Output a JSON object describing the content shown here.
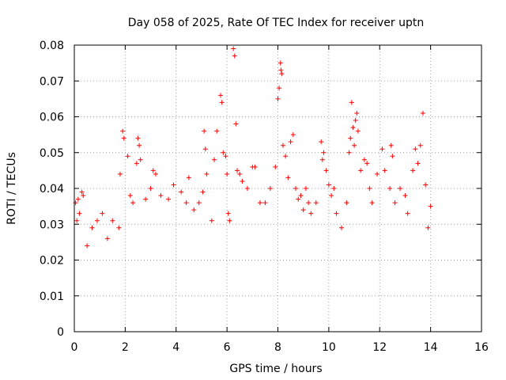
{
  "chart_data": {
    "type": "scatter",
    "title": "Day 058 of 2025, Rate Of TEC Index for receiver uptn",
    "xlabel": "GPS time / hours",
    "ylabel": "ROTI / TECUs",
    "xlim": [
      0,
      16
    ],
    "ylim": [
      0,
      0.08
    ],
    "xticks": [
      0,
      2,
      4,
      6,
      8,
      10,
      12,
      14,
      16
    ],
    "yticks": [
      0,
      0.01,
      0.02,
      0.03,
      0.04,
      0.05,
      0.06,
      0.07,
      0.08
    ],
    "xtick_labels": [
      "0",
      "2",
      "4",
      "6",
      "8",
      "10",
      "12",
      "14",
      "16"
    ],
    "ytick_labels": [
      "0",
      "0.01",
      "0.02",
      "0.03",
      "0.04",
      "0.05",
      "0.06",
      "0.07",
      "0.08"
    ],
    "grid": true,
    "marker": "plus",
    "marker_color": "#ff0000",
    "data_range_x": [
      0,
      14
    ],
    "series": [
      {
        "name": "ROTI",
        "color": "#ff0000",
        "points": [
          [
            0.05,
            0.036
          ],
          [
            0.1,
            0.031
          ],
          [
            0.15,
            0.037
          ],
          [
            0.2,
            0.033
          ],
          [
            0.3,
            0.039
          ],
          [
            0.35,
            0.038
          ],
          [
            0.5,
            0.024
          ],
          [
            0.7,
            0.029
          ],
          [
            0.9,
            0.031
          ],
          [
            1.1,
            0.033
          ],
          [
            1.3,
            0.026
          ],
          [
            1.5,
            0.031
          ],
          [
            1.75,
            0.029
          ],
          [
            1.8,
            0.044
          ],
          [
            1.9,
            0.056
          ],
          [
            1.95,
            0.054
          ],
          [
            2.1,
            0.049
          ],
          [
            2.2,
            0.038
          ],
          [
            2.3,
            0.036
          ],
          [
            2.45,
            0.047
          ],
          [
            2.5,
            0.054
          ],
          [
            2.55,
            0.052
          ],
          [
            2.6,
            0.048
          ],
          [
            2.8,
            0.037
          ],
          [
            3.0,
            0.04
          ],
          [
            3.1,
            0.045
          ],
          [
            3.2,
            0.044
          ],
          [
            3.4,
            0.038
          ],
          [
            3.7,
            0.037
          ],
          [
            3.9,
            0.041
          ],
          [
            4.2,
            0.039
          ],
          [
            4.4,
            0.036
          ],
          [
            4.5,
            0.043
          ],
          [
            4.7,
            0.034
          ],
          [
            4.9,
            0.036
          ],
          [
            5.05,
            0.039
          ],
          [
            5.1,
            0.056
          ],
          [
            5.15,
            0.051
          ],
          [
            5.2,
            0.044
          ],
          [
            5.4,
            0.031
          ],
          [
            5.5,
            0.048
          ],
          [
            5.6,
            0.056
          ],
          [
            5.75,
            0.066
          ],
          [
            5.8,
            0.064
          ],
          [
            5.85,
            0.05
          ],
          [
            5.95,
            0.049
          ],
          [
            6.0,
            0.044
          ],
          [
            6.05,
            0.033
          ],
          [
            6.1,
            0.031
          ],
          [
            6.25,
            0.079
          ],
          [
            6.3,
            0.077
          ],
          [
            6.35,
            0.058
          ],
          [
            6.4,
            0.045
          ],
          [
            6.5,
            0.044
          ],
          [
            6.6,
            0.042
          ],
          [
            6.8,
            0.04
          ],
          [
            7.0,
            0.046
          ],
          [
            7.1,
            0.046
          ],
          [
            7.3,
            0.036
          ],
          [
            7.5,
            0.036
          ],
          [
            7.7,
            0.04
          ],
          [
            7.9,
            0.046
          ],
          [
            8.0,
            0.065
          ],
          [
            8.05,
            0.068
          ],
          [
            8.1,
            0.075
          ],
          [
            8.12,
            0.073
          ],
          [
            8.15,
            0.072
          ],
          [
            8.2,
            0.052
          ],
          [
            8.3,
            0.049
          ],
          [
            8.4,
            0.043
          ],
          [
            8.5,
            0.053
          ],
          [
            8.6,
            0.055
          ],
          [
            8.7,
            0.04
          ],
          [
            8.8,
            0.037
          ],
          [
            8.9,
            0.038
          ],
          [
            9.0,
            0.034
          ],
          [
            9.1,
            0.04
          ],
          [
            9.2,
            0.036
          ],
          [
            9.3,
            0.033
          ],
          [
            9.5,
            0.036
          ],
          [
            9.7,
            0.053
          ],
          [
            9.75,
            0.048
          ],
          [
            9.8,
            0.05
          ],
          [
            9.9,
            0.045
          ],
          [
            10.0,
            0.041
          ],
          [
            10.1,
            0.038
          ],
          [
            10.2,
            0.04
          ],
          [
            10.3,
            0.033
          ],
          [
            10.5,
            0.029
          ],
          [
            10.7,
            0.036
          ],
          [
            10.8,
            0.05
          ],
          [
            10.85,
            0.054
          ],
          [
            10.9,
            0.064
          ],
          [
            10.95,
            0.057
          ],
          [
            11.0,
            0.052
          ],
          [
            11.05,
            0.059
          ],
          [
            11.1,
            0.061
          ],
          [
            11.15,
            0.056
          ],
          [
            11.25,
            0.045
          ],
          [
            11.4,
            0.048
          ],
          [
            11.5,
            0.047
          ],
          [
            11.6,
            0.04
          ],
          [
            11.7,
            0.036
          ],
          [
            11.9,
            0.044
          ],
          [
            12.1,
            0.051
          ],
          [
            12.2,
            0.045
          ],
          [
            12.4,
            0.04
          ],
          [
            12.45,
            0.052
          ],
          [
            12.5,
            0.049
          ],
          [
            12.6,
            0.036
          ],
          [
            12.8,
            0.04
          ],
          [
            13.0,
            0.038
          ],
          [
            13.1,
            0.033
          ],
          [
            13.3,
            0.045
          ],
          [
            13.4,
            0.051
          ],
          [
            13.5,
            0.047
          ],
          [
            13.6,
            0.052
          ],
          [
            13.7,
            0.061
          ],
          [
            13.8,
            0.041
          ],
          [
            13.9,
            0.029
          ],
          [
            14.0,
            0.035
          ]
        ]
      }
    ]
  }
}
